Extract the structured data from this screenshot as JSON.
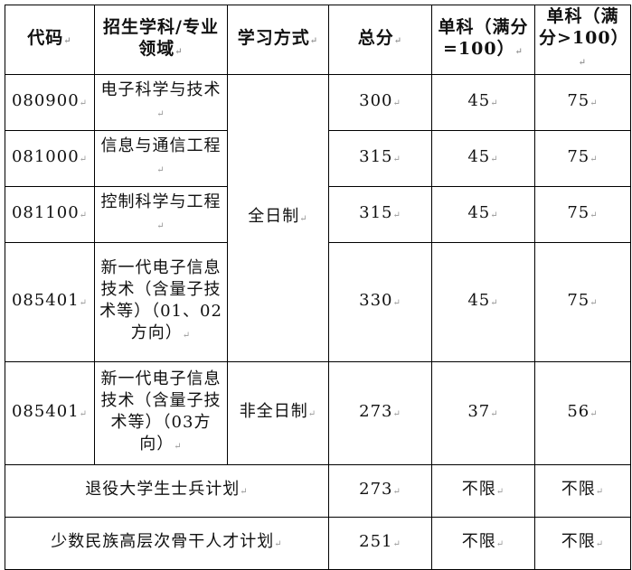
{
  "header": [
    "代码",
    "招生学科/专业领域",
    "学习方式",
    "总分",
    "单科（满分=100）",
    "单科（满分>100）"
  ],
  "rows": [
    {
      "code": "080900",
      "field": "电子科学与技术",
      "total": "300",
      "s100": "45",
      "s100p": "75"
    },
    {
      "code": "081000",
      "field": "信息与通信工程",
      "total": "315",
      "s100": "45",
      "s100p": "75"
    },
    {
      "code": "081100",
      "field": "控制科学与工程",
      "total": "315",
      "s100": "45",
      "s100p": "75"
    },
    {
      "code": "085401",
      "field": "新一代电子信息技术（含量子技术等）（01、02方向）",
      "total": "330",
      "s100": "45",
      "s100p": "75"
    },
    {
      "code": "085401",
      "field": "新一代电子信息技术（含量子技术等）（03方向）",
      "total": "273",
      "s100": "37",
      "s100p": "56"
    }
  ],
  "modes": {
    "fulltime": "全日制",
    "parttime": "非全日制"
  },
  "special": [
    {
      "label": "退役大学生士兵计划",
      "total": "273",
      "s100": "不限",
      "s100p": "不限"
    },
    {
      "label": "少数民族高层次骨干人才计划",
      "total": "251",
      "s100": "不限",
      "s100p": "不限"
    }
  ],
  "paragraph_mark": "↵"
}
